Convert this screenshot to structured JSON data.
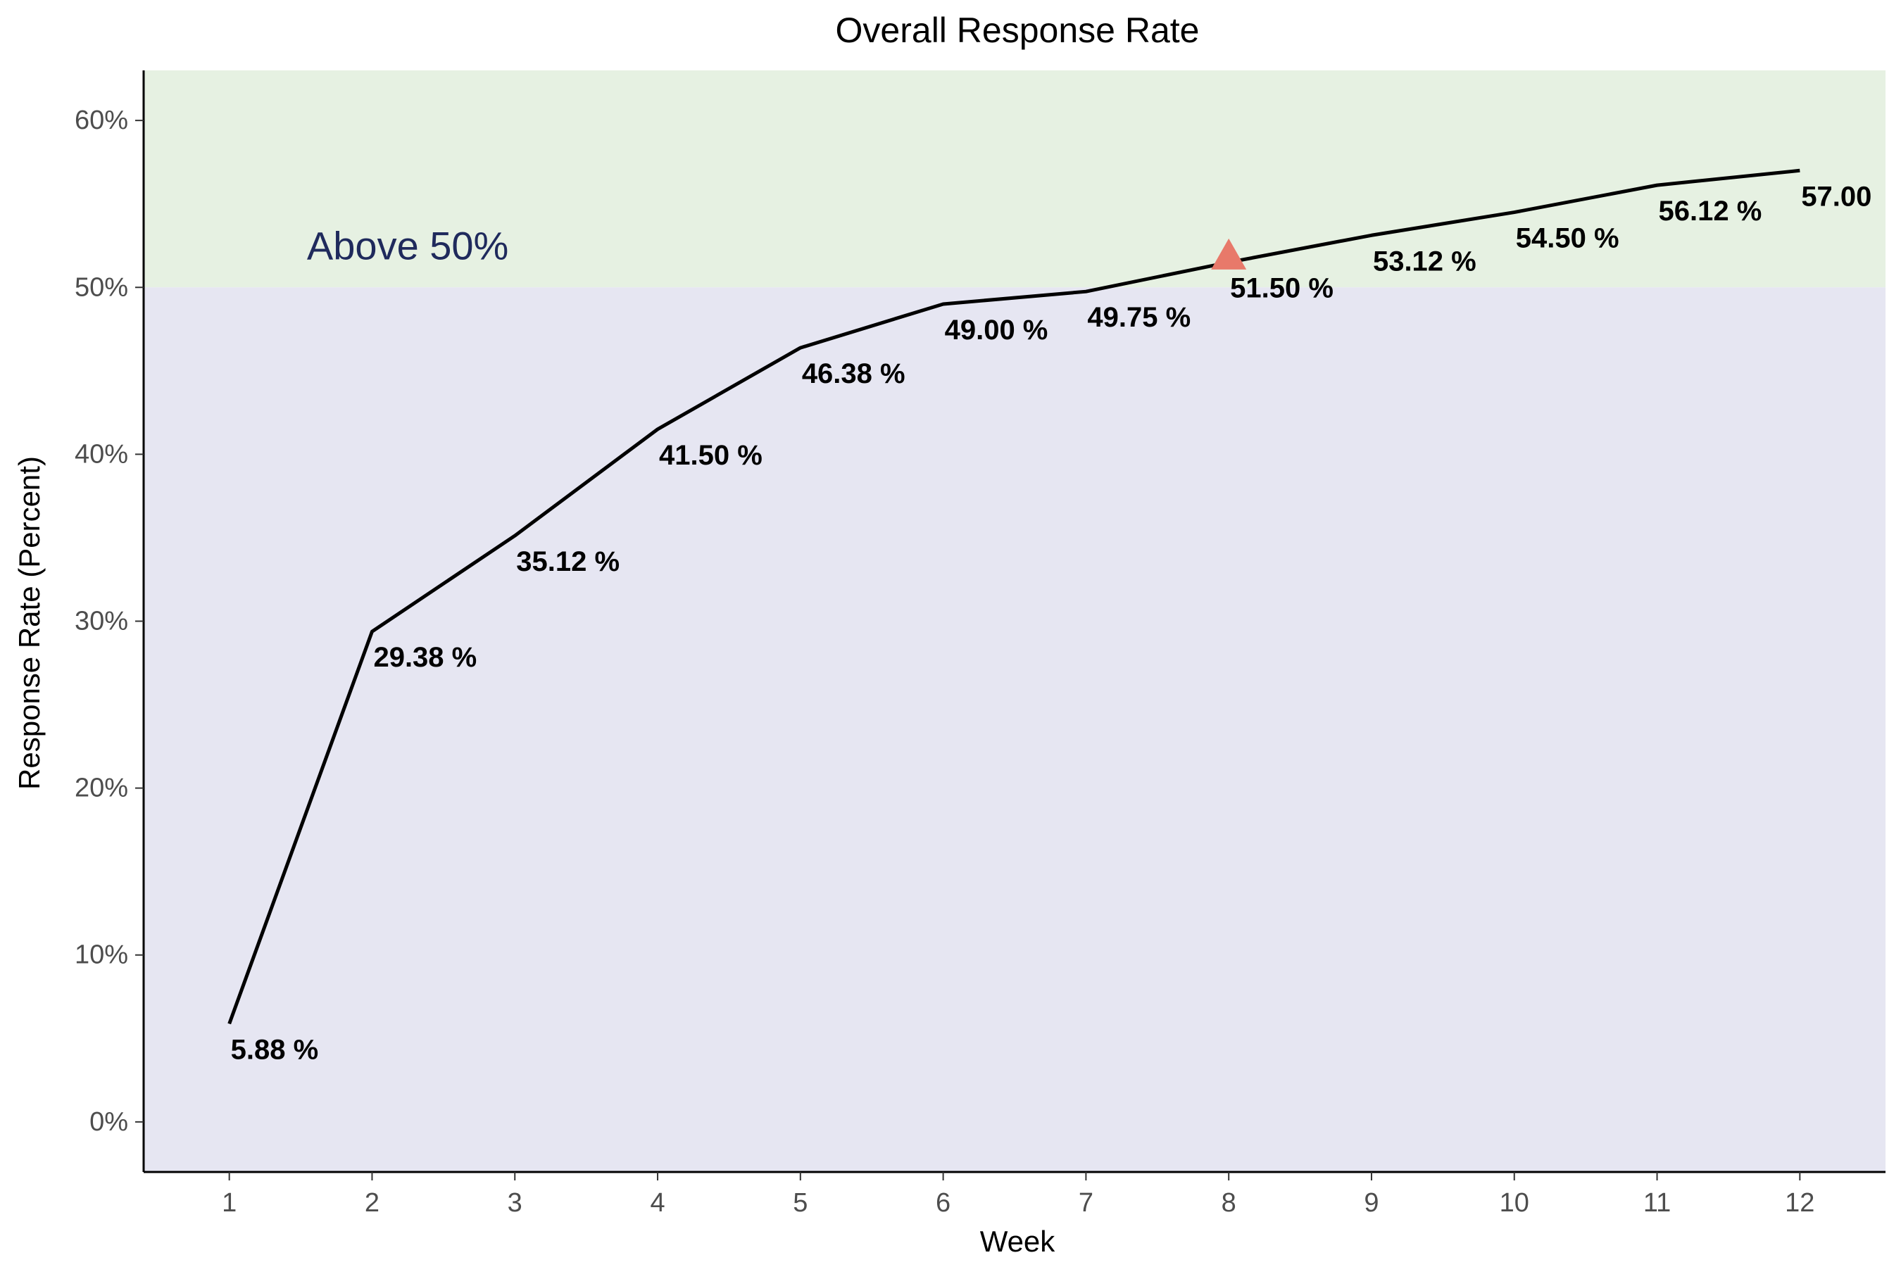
{
  "chart_data": {
    "type": "line",
    "title": "Overall Response Rate",
    "xlabel": "Week",
    "ylabel": "Response Rate (Percent)",
    "x": [
      1,
      2,
      3,
      4,
      5,
      6,
      7,
      8,
      9,
      10,
      11,
      12
    ],
    "series": [
      {
        "values": [
          5.88,
          29.38,
          35.12,
          41.5,
          46.38,
          49.0,
          49.75,
          51.5,
          53.12,
          54.5,
          56.12,
          57.0
        ],
        "data_labels": [
          "5.88 %",
          "29.38 %",
          "35.12 %",
          "41.50 %",
          "46.38 %",
          "49.00 %",
          "49.75 %",
          "51.50 %",
          "53.12 %",
          "54.50 %",
          "56.12 %",
          "57.00"
        ],
        "color": "#000000"
      }
    ],
    "xlim": [
      0.4,
      12.6
    ],
    "ylim": [
      -3,
      63
    ],
    "x_ticks": [
      1,
      2,
      3,
      4,
      5,
      6,
      7,
      8,
      9,
      10,
      11,
      12
    ],
    "x_tick_labels": [
      "1",
      "2",
      "3",
      "4",
      "5",
      "6",
      "7",
      "8",
      "9",
      "10",
      "11",
      "12"
    ],
    "y_ticks": [
      0,
      10,
      20,
      30,
      40,
      50,
      60
    ],
    "y_tick_labels": [
      "0%",
      "10%",
      "20%",
      "30%",
      "40%",
      "50%",
      "60%"
    ],
    "bands": [
      {
        "from": 50,
        "to": 63,
        "color": "#e6f1e2"
      },
      {
        "from": -3,
        "to": 50,
        "color": "#e6e6f2"
      }
    ],
    "annotation": {
      "text": "Above 50%",
      "x": 2.25,
      "y": 52.5,
      "color": "#1f2a5c"
    },
    "marker": {
      "shape": "triangle",
      "x": 8,
      "y": 52,
      "color": "#e8796a"
    },
    "grid": false,
    "legend": "none"
  }
}
